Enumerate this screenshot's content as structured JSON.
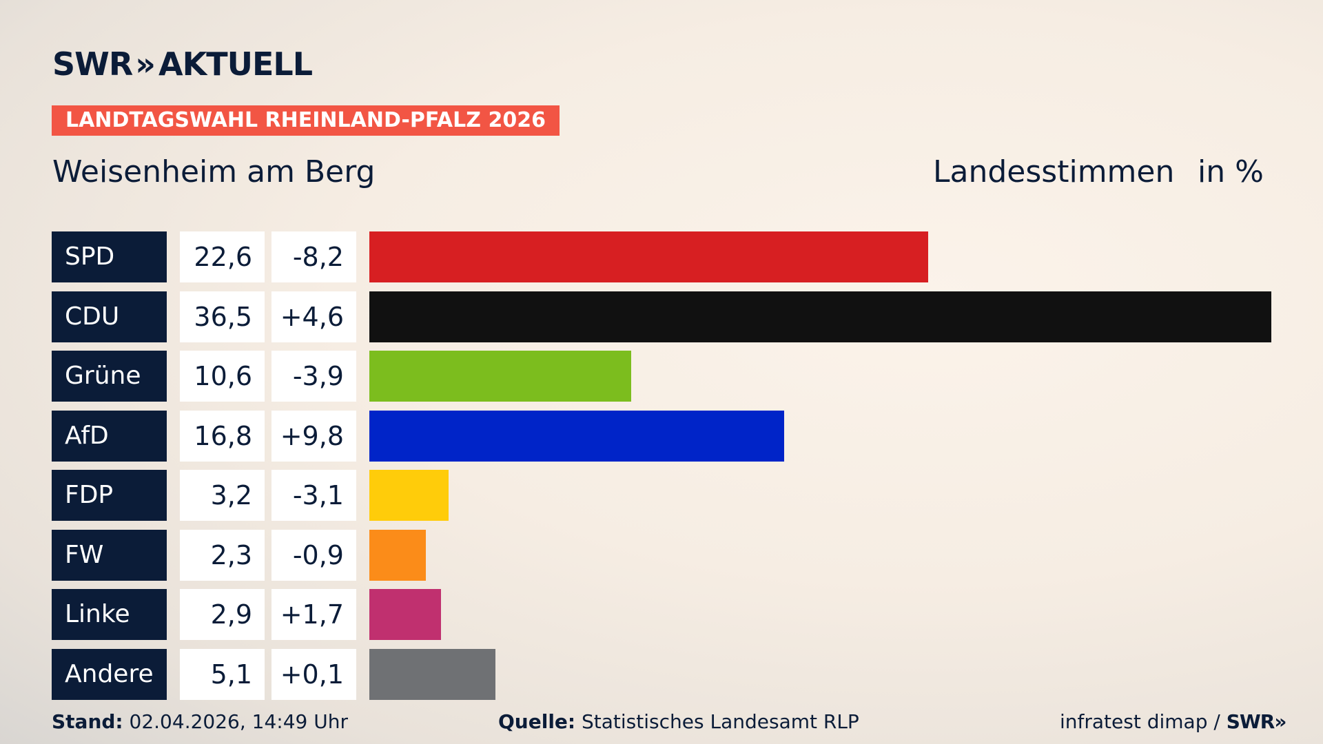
{
  "header": {
    "logo_left": "SWR",
    "logo_chevrons": "»",
    "logo_right": "AKTUELL",
    "election_title": "LANDTAGSWAHL RHEINLAND-PFALZ 2026",
    "place": "Weisenheim am Berg",
    "vote_type": "Landesstimmen",
    "unit": "in %"
  },
  "chart_data": {
    "type": "bar",
    "orientation": "horizontal",
    "categories": [
      "SPD",
      "CDU",
      "Grüne",
      "AfD",
      "FDP",
      "FW",
      "Linke",
      "Andere"
    ],
    "values": [
      22.6,
      36.5,
      10.6,
      16.8,
      3.2,
      2.3,
      2.9,
      5.1
    ],
    "value_labels": [
      "22,6",
      "36,5",
      "10,6",
      "16,8",
      "3,2",
      "2,3",
      "2,9",
      "5,1"
    ],
    "diff_labels": [
      "-8,2",
      "+4,6",
      "-3,9",
      "+9,8",
      "-3,1",
      "-0,9",
      "+1,7",
      "+0,1"
    ],
    "diffs": [
      -8.2,
      4.6,
      -3.9,
      9.8,
      -3.1,
      -0.9,
      1.7,
      0.1
    ],
    "colors": [
      "#d71f22",
      "#111111",
      "#7cbd1e",
      "#0024c8",
      "#ffcc0a",
      "#fb8c19",
      "#c0306f",
      "#6f7174"
    ],
    "xlim": [
      0,
      36.5
    ],
    "grid": false,
    "legend": "none"
  },
  "footer": {
    "stand_label": "Stand:",
    "stand_value": "02.04.2026, 14:49 Uhr",
    "source_label": "Quelle:",
    "source_value": "Statistisches Landesamt RLP",
    "institute": "infratest dimap /",
    "mini_logo": "SWR»"
  }
}
